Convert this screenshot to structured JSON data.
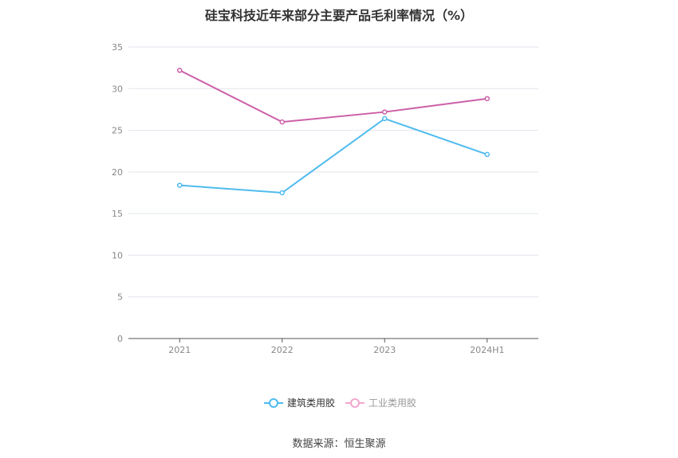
{
  "title": "硅宝科技近年来部分主要产品毛利率情况（%）",
  "source": "数据来源：恒生聚源",
  "chart_data": {
    "type": "line",
    "title": "硅宝科技近年来部分主要产品毛利率情况（%）",
    "categories": [
      "2021",
      "2022",
      "2023",
      "2024H1"
    ],
    "series": [
      {
        "name": "建筑类用胶",
        "values": [
          18.4,
          17.5,
          26.4,
          22.1
        ],
        "color": "#4fbbee"
      },
      {
        "name": "工业类用胶",
        "values": [
          32.2,
          26.0,
          27.2,
          28.8
        ],
        "color": "#cc5fa8"
      }
    ],
    "ylim": [
      0,
      35
    ],
    "yticks": [
      0,
      5,
      10,
      15,
      20,
      25,
      30,
      35
    ],
    "grid": true,
    "legend_position": "bottom"
  }
}
